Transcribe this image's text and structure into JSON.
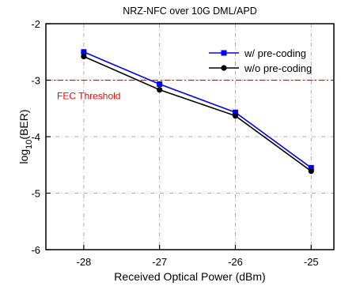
{
  "chart_data": {
    "type": "line",
    "title": "NRZ-NFC over 10G DML/APD",
    "xlabel": "Received Optical Power (dBm)",
    "ylabel": {
      "prefix": "log",
      "subscript": "10",
      "suffix": "(BER)"
    },
    "x": [
      -28,
      -27,
      -26,
      -25
    ],
    "xlim": [
      -28.5,
      -24.7
    ],
    "ylim": [
      -6,
      -2
    ],
    "x_ticks": [
      "-28",
      "-27",
      "-26",
      "-25"
    ],
    "y_ticks": [
      "-2",
      "-3",
      "-4",
      "-5",
      "-6"
    ],
    "y_tick_values": [
      -2,
      -3,
      -4,
      -5,
      -6
    ],
    "grid": true,
    "legend_position": "top-right",
    "series": [
      {
        "name": "w/ pre-coding",
        "values": [
          -2.5,
          -3.07,
          -3.57,
          -4.55
        ],
        "color": "#0000ff",
        "marker": "square"
      },
      {
        "name": "w/o pre-coding",
        "values": [
          -2.58,
          -3.17,
          -3.63,
          -4.61
        ],
        "color": "#000000",
        "marker": "circle"
      }
    ],
    "threshold": {
      "label": "FEC Threshold",
      "value": -3,
      "color": "#ff0000"
    }
  }
}
